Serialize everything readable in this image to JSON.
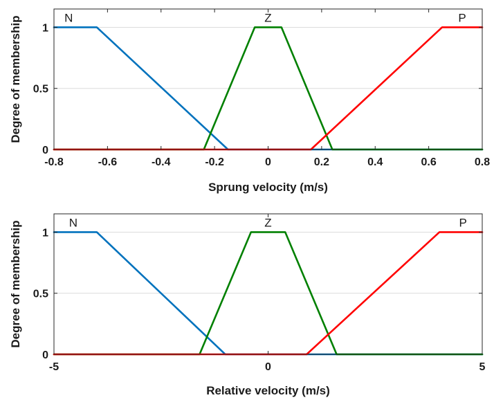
{
  "chart_data": [
    {
      "type": "line",
      "xlabel": "Sprung velocity (m/s)",
      "ylabel": "Degree of membership",
      "xlim": [
        -0.8,
        0.8
      ],
      "ylim": [
        0,
        1.15
      ],
      "xticks": [
        -0.8,
        -0.6,
        -0.4,
        -0.2,
        0,
        0.2,
        0.4,
        0.6,
        0.8
      ],
      "xtick_labels": [
        "-0.8",
        "-0.6",
        "-0.4",
        "-0.2",
        "0",
        "0.2",
        "0.4",
        "0.6",
        "0.8"
      ],
      "yticks": [
        0,
        0.5,
        1
      ],
      "ytick_labels": [
        "0",
        "0.5",
        "1"
      ],
      "grid": "horizontal",
      "series": [
        {
          "name": "N",
          "color": "#0072BD",
          "x": [
            -0.8,
            -0.64,
            -0.15,
            0.8
          ],
          "y": [
            1,
            1,
            0,
            0
          ]
        },
        {
          "name": "Z",
          "color": "#008000",
          "x": [
            -0.8,
            -0.24,
            -0.05,
            0.05,
            0.24,
            0.8
          ],
          "y": [
            0,
            0,
            1,
            1,
            0,
            0
          ]
        },
        {
          "name": "P",
          "color": "#FF0000",
          "x": [
            -0.8,
            0.16,
            0.65,
            0.8
          ],
          "y": [
            0,
            0,
            1,
            1
          ]
        }
      ],
      "annotations": [
        {
          "text": "N",
          "x": -0.745,
          "y": 1.08
        },
        {
          "text": "Z",
          "x": 0.0,
          "y": 1.08
        },
        {
          "text": "P",
          "x": 0.725,
          "y": 1.08
        }
      ]
    },
    {
      "type": "line",
      "xlabel": "Relative velocity (m/s)",
      "ylabel": "Degree of membership",
      "xlim": [
        -5,
        5
      ],
      "ylim": [
        0,
        1.15
      ],
      "xticks": [
        -5,
        0,
        5
      ],
      "xtick_labels": [
        "-5",
        "0",
        "5"
      ],
      "yticks": [
        0,
        0.5,
        1
      ],
      "ytick_labels": [
        "0",
        "0.5",
        "1"
      ],
      "grid": "horizontal",
      "series": [
        {
          "name": "N",
          "color": "#0072BD",
          "x": [
            -5,
            -4.0,
            -1.0,
            5
          ],
          "y": [
            1,
            1,
            0,
            0
          ]
        },
        {
          "name": "Z",
          "color": "#008000",
          "x": [
            -5,
            -1.6,
            -0.4,
            0.4,
            1.6,
            5
          ],
          "y": [
            0,
            0,
            1,
            1,
            0,
            0
          ]
        },
        {
          "name": "P",
          "color": "#FF0000",
          "x": [
            -5,
            0.9,
            4.0,
            5
          ],
          "y": [
            0,
            0,
            1,
            1
          ]
        }
      ],
      "annotations": [
        {
          "text": "N",
          "x": -4.55,
          "y": 1.08
        },
        {
          "text": "Z",
          "x": 0.0,
          "y": 1.08
        },
        {
          "text": "P",
          "x": 4.55,
          "y": 1.08
        }
      ]
    }
  ]
}
